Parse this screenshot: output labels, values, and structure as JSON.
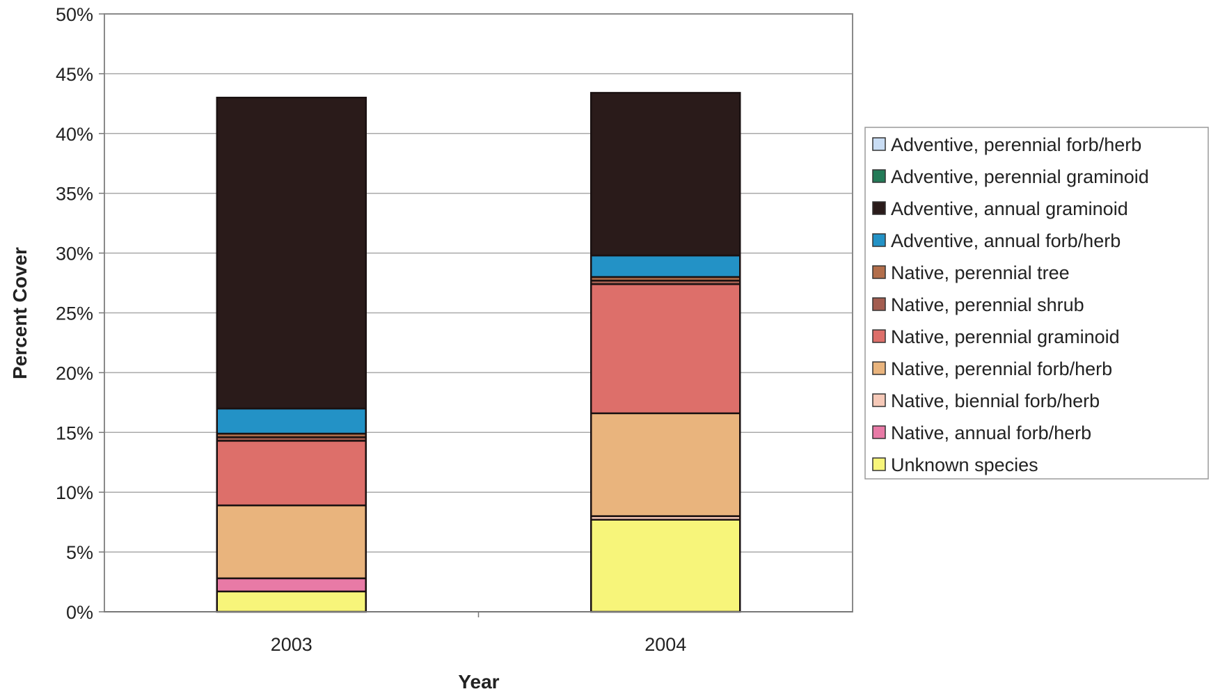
{
  "chart_data": {
    "type": "bar",
    "stacked": true,
    "categories": [
      "2003",
      "2004"
    ],
    "xlabel": "Year",
    "ylabel": "Percent Cover",
    "ylim": [
      0,
      50
    ],
    "y_ticks": [
      "0%",
      "5%",
      "10%",
      "15%",
      "20%",
      "25%",
      "30%",
      "35%",
      "40%",
      "45%",
      "50%"
    ],
    "grid": true,
    "legend_position": "right",
    "series": [
      {
        "name": "Unknown species",
        "color": "#f7f57a",
        "values": [
          1.7,
          7.7
        ]
      },
      {
        "name": "Native, annual forb/herb",
        "color": "#e87aa6",
        "values": [
          1.1,
          0.0
        ]
      },
      {
        "name": "Native, biennial forb/herb",
        "color": "#f6c9b8",
        "values": [
          0.0,
          0.3
        ]
      },
      {
        "name": "Native, perennial forb/herb",
        "color": "#e9b47d",
        "values": [
          6.1,
          8.6
        ]
      },
      {
        "name": "Native, perennial graminoid",
        "color": "#dd6f6a",
        "values": [
          5.4,
          10.8
        ]
      },
      {
        "name": "Native, perennial shrub",
        "color": "#a35d50",
        "values": [
          0.3,
          0.3
        ]
      },
      {
        "name": "Native, perennial tree",
        "color": "#b26e4b",
        "values": [
          0.3,
          0.3
        ]
      },
      {
        "name": "Adventive, annual forb/herb",
        "color": "#2392c6",
        "values": [
          2.1,
          1.8
        ]
      },
      {
        "name": "Adventive, annual graminoid",
        "color": "#2a1b1a",
        "values": [
          26.0,
          13.6
        ]
      },
      {
        "name": "Adventive, perennial graminoid",
        "color": "#237a57",
        "values": [
          0.0,
          0.0
        ]
      },
      {
        "name": "Adventive, perennial forb/herb",
        "color": "#c9ddf4",
        "values": [
          0.0,
          0.0
        ]
      }
    ]
  }
}
